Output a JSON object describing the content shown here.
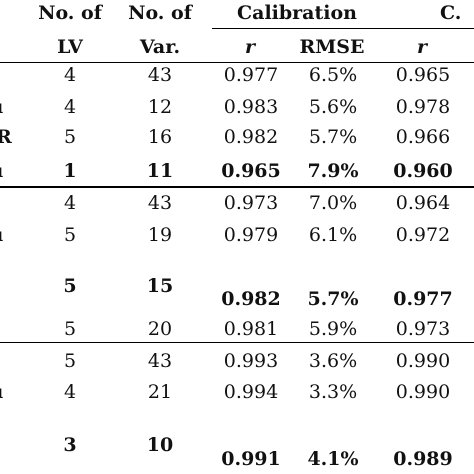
{
  "header": {
    "lv_line1": "No. of",
    "lv_line2": "LV",
    "var_line1": "No. of",
    "var_line2": "Var.",
    "calibration": "Calibration",
    "cv_partial": "C.",
    "r": "r",
    "rmse": "RMSE",
    "r2": "r"
  },
  "left_fragments": [
    "",
    "ı",
    "R",
    "ı",
    "",
    "ı",
    "",
    "",
    "",
    "ı",
    ""
  ],
  "rows": [
    {
      "lv": "4",
      "var": "43",
      "r": "0.977",
      "rmse": "6.5%",
      "r2": "0.965",
      "bold": false
    },
    {
      "lv": "4",
      "var": "12",
      "r": "0.983",
      "rmse": "5.6%",
      "r2": "0.978",
      "bold": false
    },
    {
      "lv": "5",
      "var": "16",
      "r": "0.982",
      "rmse": "5.7%",
      "r2": "0.966",
      "bold": false
    },
    {
      "lv": "1",
      "var": "11",
      "r": "0.965",
      "rmse": "7.9%",
      "r2": "0.960",
      "bold": true
    },
    {
      "lv": "4",
      "var": "43",
      "r": "0.973",
      "rmse": "7.0%",
      "r2": "0.964",
      "bold": false
    },
    {
      "lv": "5",
      "var": "19",
      "r": "0.979",
      "rmse": "6.1%",
      "r2": "0.972",
      "bold": false
    },
    {
      "lv": "5",
      "var": "15",
      "r": "0.982",
      "rmse": "5.7%",
      "r2": "0.977",
      "bold": true
    },
    {
      "lv": "5",
      "var": "20",
      "r": "0.981",
      "rmse": "5.9%",
      "r2": "0.973",
      "bold": false
    },
    {
      "lv": "5",
      "var": "43",
      "r": "0.993",
      "rmse": "3.6%",
      "r2": "0.990",
      "bold": false
    },
    {
      "lv": "4",
      "var": "21",
      "r": "0.994",
      "rmse": "3.3%",
      "r2": "0.990",
      "bold": false
    },
    {
      "lv": "3",
      "var": "10",
      "r": "0.991",
      "rmse": "4.1%",
      "r2": "0.989",
      "bold": true
    }
  ]
}
